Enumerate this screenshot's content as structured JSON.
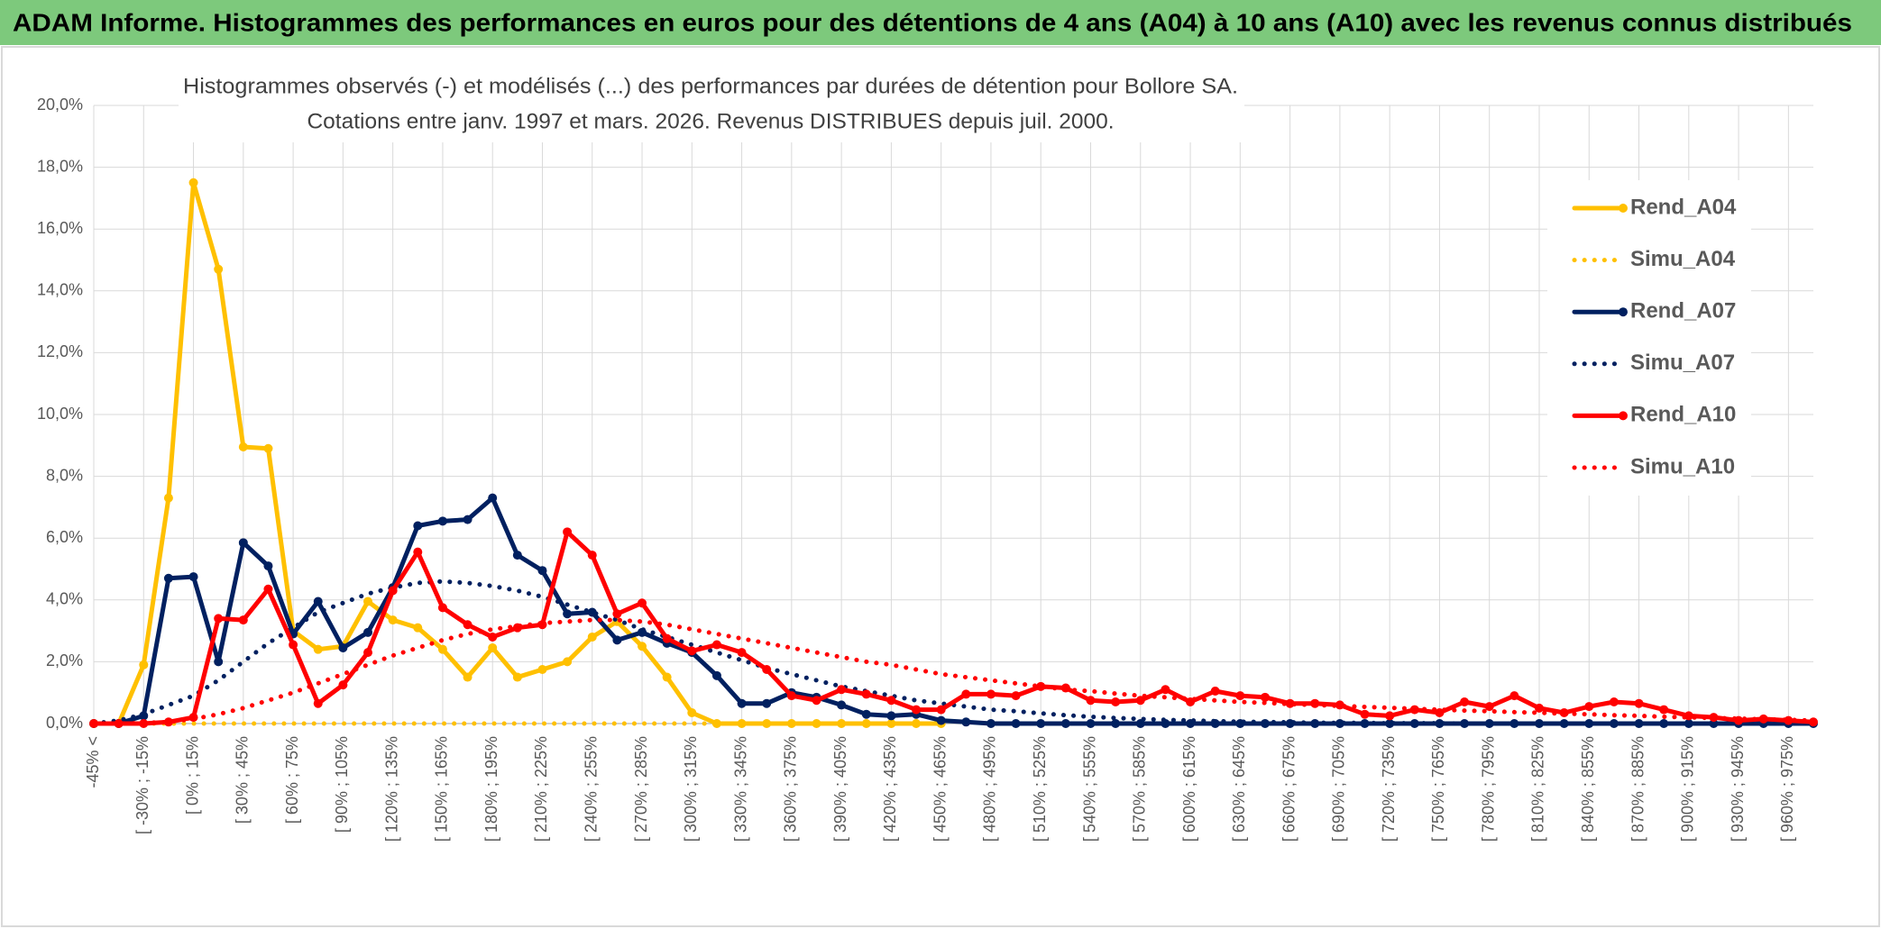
{
  "header": {
    "title": "ADAM Informe. Histogrammes des performances en euros pour des détentions de 4 ans (A04) à 10 ans (A10) avec les revenus connus distribués"
  },
  "chart_data": {
    "type": "line",
    "title": "Histogrammes observés (-) et modélisés (...) des performances par durées de détention pour Bollore SA.",
    "subtitle": "Cotations entre janv. 1997 et mars. 2026. Revenus DISTRIBUES depuis juil. 2000.",
    "categories": [
      "-45% <",
      null,
      "[ -30% ; -15%",
      null,
      "[ 0% ; 15%",
      null,
      "[ 30% ; 45%",
      null,
      "[ 60% ; 75%",
      null,
      "[ 90% ; 105%",
      null,
      "[ 120% ; 135%",
      null,
      "[ 150% ; 165%",
      null,
      "[ 180% ; 195%",
      null,
      "[ 210% ; 225%",
      null,
      "[ 240% ; 255%",
      null,
      "[ 270% ; 285%",
      null,
      "[ 300% ; 315%",
      null,
      "[ 330% ; 345%",
      null,
      "[ 360% ; 375%",
      null,
      "[ 390% ; 405%",
      null,
      "[ 420% ; 435%",
      null,
      "[ 450% ; 465%",
      null,
      "[ 480% ; 495%",
      null,
      "[ 510% ; 525%",
      null,
      "[ 540% ; 555%",
      null,
      "[ 570% ; 585%",
      null,
      "[ 600% ; 615%",
      null,
      "[ 630% ; 645%",
      null,
      "[ 660% ; 675%",
      null,
      "[ 690% ; 705%",
      null,
      "[ 720% ; 735%",
      null,
      "[ 750% ; 765%",
      null,
      "[ 780% ; 795%",
      null,
      "[ 810% ; 825%",
      null,
      "[ 840% ; 855%",
      null,
      "[ 870% ; 885%",
      null,
      "[ 900% ; 915%",
      null,
      "[ 930% ; 945%",
      null,
      "[ 960% ; 975%",
      null
    ],
    "series": [
      {
        "name": "Rend_A04",
        "color": "#ffc000",
        "style": "solid",
        "values": [
          0,
          0,
          1.9,
          7.3,
          17.5,
          14.7,
          8.95,
          8.9,
          3.0,
          2.4,
          2.5,
          3.95,
          3.35,
          3.1,
          2.4,
          1.5,
          2.45,
          1.5,
          1.75,
          2.0,
          2.8,
          3.3,
          2.5,
          1.5,
          0.35,
          0,
          0,
          0,
          0,
          0,
          0,
          0,
          0,
          0,
          0,
          null,
          null,
          null,
          null,
          null,
          null,
          null,
          null,
          null,
          null,
          null,
          null,
          null,
          null,
          null,
          null,
          null,
          null,
          null,
          null,
          null,
          null,
          null,
          null,
          null,
          null,
          null,
          null,
          null,
          null,
          null,
          null,
          null,
          null,
          null
        ]
      },
      {
        "name": "Simu_A04",
        "color": "#ffc000",
        "style": "dotted",
        "values": [
          0,
          0,
          0,
          0,
          0,
          0,
          0,
          0,
          0,
          0,
          0,
          0,
          0,
          0,
          0,
          0,
          0,
          0,
          0,
          0,
          0,
          0,
          0,
          0,
          0,
          0,
          0,
          0,
          0,
          0,
          0,
          0,
          0,
          0,
          0,
          null,
          null,
          null,
          null,
          null,
          null,
          null,
          null,
          null,
          null,
          null,
          null,
          null,
          null,
          null,
          null,
          null,
          null,
          null,
          null,
          null,
          null,
          null,
          null,
          null,
          null,
          null,
          null,
          null,
          null,
          null,
          null,
          null,
          null,
          null
        ]
      },
      {
        "name": "Rend_A07",
        "color": "#002060",
        "style": "solid",
        "values": [
          0,
          0,
          0.25,
          4.7,
          4.75,
          2.0,
          5.85,
          5.1,
          2.9,
          3.95,
          2.45,
          2.95,
          4.4,
          6.4,
          6.55,
          6.6,
          7.3,
          5.45,
          4.95,
          3.55,
          3.6,
          2.7,
          2.95,
          2.6,
          2.3,
          1.55,
          0.65,
          0.65,
          1.0,
          0.85,
          0.6,
          0.3,
          0.25,
          0.3,
          0.1,
          0.05,
          0,
          0,
          0,
          0,
          0,
          0,
          0,
          0,
          0,
          0,
          0,
          0,
          0,
          0,
          0,
          0,
          0,
          0,
          0,
          0,
          0,
          0,
          0,
          0,
          0,
          0,
          0,
          0,
          0,
          0,
          0,
          0,
          0,
          0
        ]
      },
      {
        "name": "Simu_A07",
        "color": "#002060",
        "style": "dotted",
        "values": [
          0,
          0.1,
          0.3,
          0.6,
          0.9,
          1.4,
          2.0,
          2.6,
          3.1,
          3.6,
          3.9,
          4.2,
          4.4,
          4.55,
          4.6,
          4.55,
          4.45,
          4.3,
          4.1,
          3.85,
          3.6,
          3.35,
          3.05,
          2.8,
          2.55,
          2.3,
          2.05,
          1.8,
          1.6,
          1.4,
          1.2,
          1.05,
          0.9,
          0.75,
          0.65,
          0.55,
          0.45,
          0.4,
          0.33,
          0.27,
          0.22,
          0.18,
          0.15,
          0.12,
          0.1,
          0.08,
          0.06,
          0.05,
          0.04,
          0.03,
          0.02,
          0.02,
          0.01,
          0.01,
          0.01,
          0,
          0,
          0,
          0,
          0,
          0,
          0,
          0,
          0,
          0,
          0,
          0,
          0,
          0,
          0
        ]
      },
      {
        "name": "Rend_A10",
        "color": "#ff0000",
        "style": "solid",
        "values": [
          0,
          0,
          0,
          0.05,
          0.2,
          3.4,
          3.35,
          4.35,
          2.55,
          0.65,
          1.25,
          2.3,
          4.3,
          5.55,
          3.75,
          3.2,
          2.8,
          3.1,
          3.2,
          6.2,
          5.45,
          3.55,
          3.9,
          2.75,
          2.35,
          2.55,
          2.3,
          1.75,
          0.9,
          0.75,
          1.1,
          0.95,
          0.75,
          0.45,
          0.45,
          0.95,
          0.95,
          0.9,
          1.2,
          1.15,
          0.75,
          0.7,
          0.75,
          1.1,
          0.7,
          1.05,
          0.9,
          0.85,
          0.65,
          0.65,
          0.6,
          0.3,
          0.25,
          0.45,
          0.35,
          0.7,
          0.55,
          0.9,
          0.5,
          0.35,
          0.55,
          0.7,
          0.65,
          0.45,
          0.25,
          0.2,
          0.1,
          0.15,
          0.1,
          0.05
        ]
      },
      {
        "name": "Simu_A10",
        "color": "#ff0000",
        "style": "dotted",
        "values": [
          0,
          0,
          0.02,
          0.05,
          0.15,
          0.3,
          0.5,
          0.75,
          1.0,
          1.3,
          1.6,
          1.9,
          2.2,
          2.45,
          2.7,
          2.9,
          3.05,
          3.15,
          3.25,
          3.3,
          3.35,
          3.35,
          3.3,
          3.2,
          3.05,
          2.9,
          2.75,
          2.6,
          2.45,
          2.3,
          2.15,
          2.0,
          1.9,
          1.75,
          1.6,
          1.5,
          1.4,
          1.3,
          1.2,
          1.1,
          1.05,
          0.97,
          0.9,
          0.85,
          0.8,
          0.75,
          0.7,
          0.67,
          0.63,
          0.6,
          0.57,
          0.54,
          0.51,
          0.48,
          0.45,
          0.42,
          0.4,
          0.37,
          0.35,
          0.32,
          0.3,
          0.27,
          0.25,
          0.22,
          0.2,
          0.18,
          0.16,
          0.14,
          0.12,
          0.1
        ]
      }
    ],
    "ylim": [
      0,
      20
    ],
    "yticks": [
      {
        "value": 0,
        "label": "0,0%"
      },
      {
        "value": 2,
        "label": "2,0%"
      },
      {
        "value": 4,
        "label": "4,0%"
      },
      {
        "value": 6,
        "label": "6,0%"
      },
      {
        "value": 8,
        "label": "8,0%"
      },
      {
        "value": 10,
        "label": "10,0%"
      },
      {
        "value": 12,
        "label": "12,0%"
      },
      {
        "value": 14,
        "label": "14,0%"
      },
      {
        "value": 16,
        "label": "16,0%"
      },
      {
        "value": 18,
        "label": "18,0%"
      },
      {
        "value": 20,
        "label": "20,0%"
      }
    ],
    "grid": true,
    "legend": "right"
  }
}
